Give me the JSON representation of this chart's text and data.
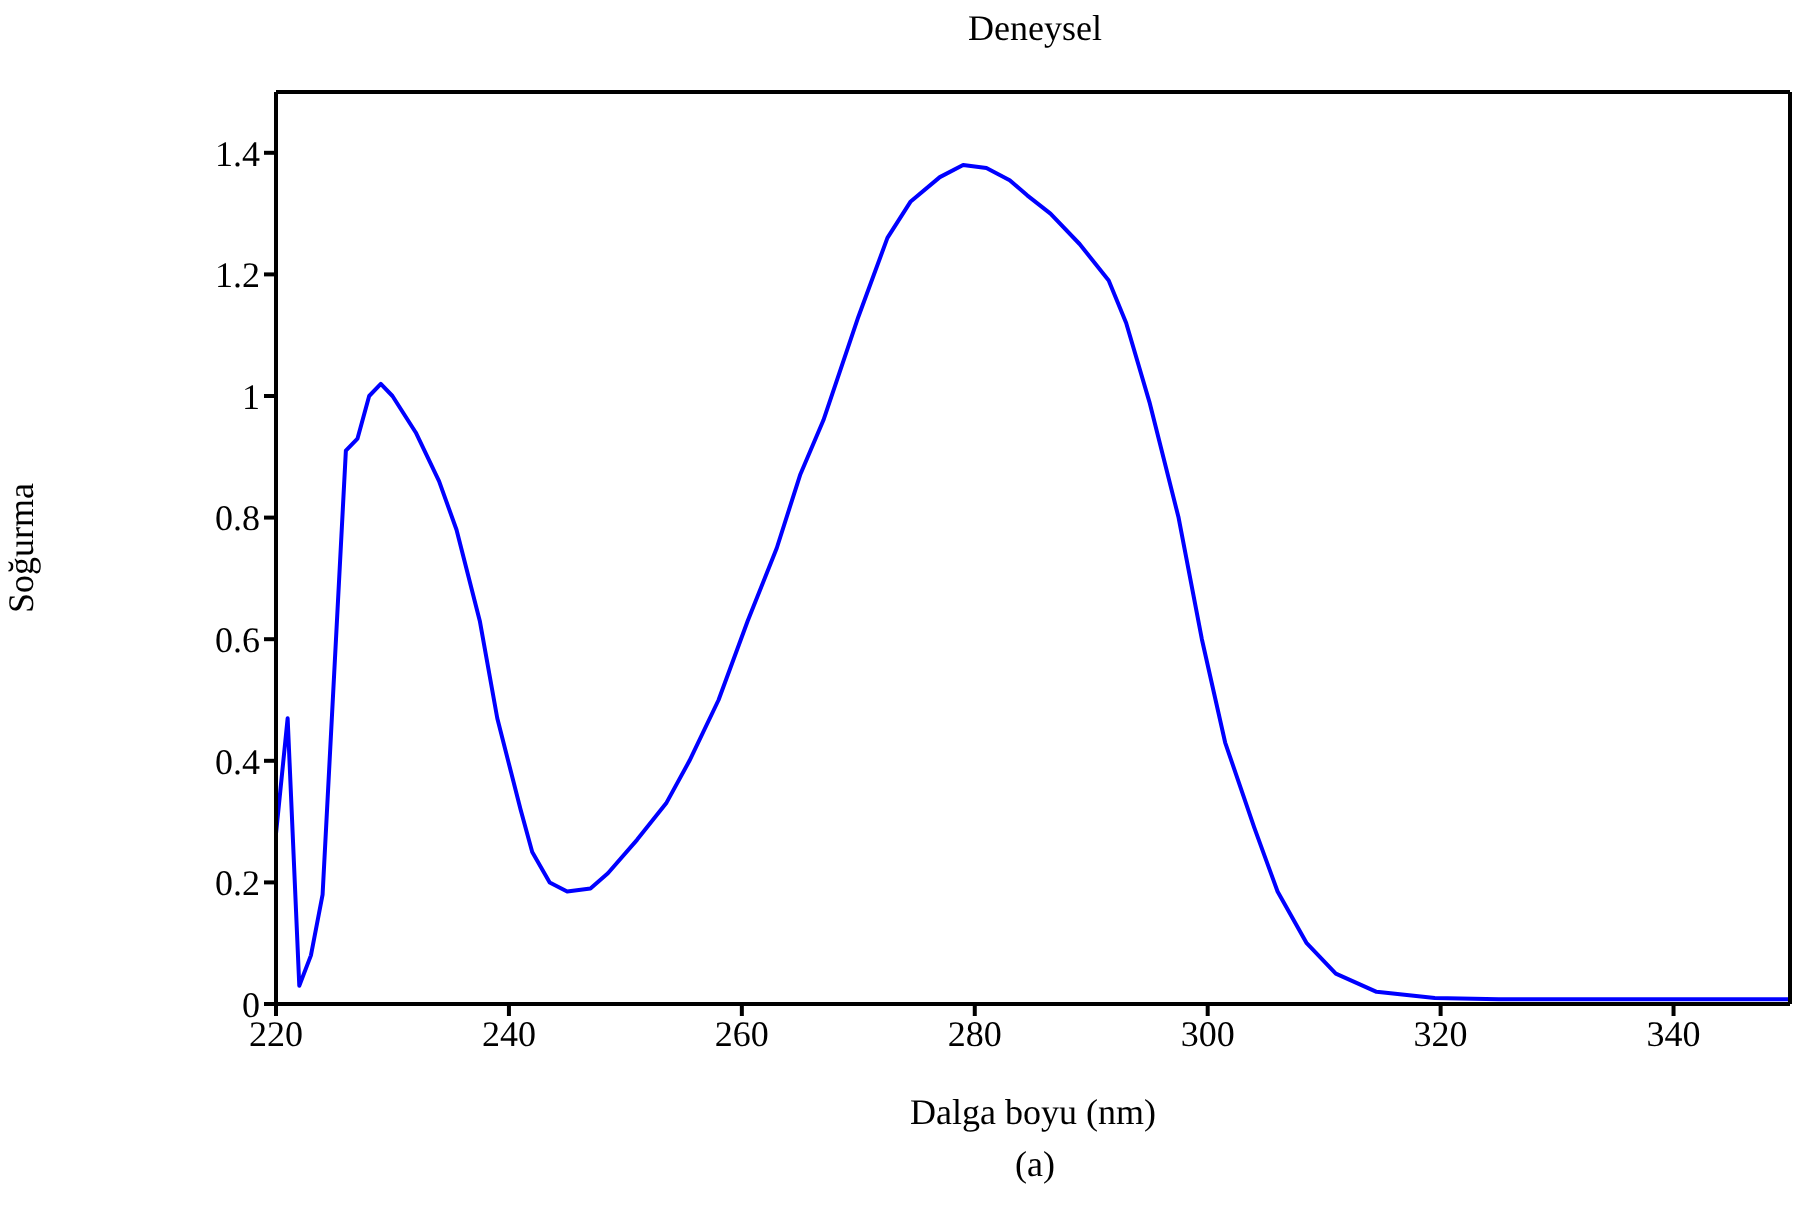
{
  "chart_data": {
    "type": "line",
    "title": "Deneysel",
    "xlabel": "Dalga boyu (nm)",
    "ylabel": "Soğurma",
    "annotations": [
      "(a)"
    ],
    "x": [
      220,
      221,
      222,
      223,
      224,
      226,
      227,
      228,
      229,
      230,
      232,
      234,
      235.5,
      237.5,
      239,
      241,
      242,
      243.5,
      245,
      247,
      248.5,
      251,
      253.5,
      255.5,
      258,
      260.5,
      263,
      265,
      267,
      270,
      272.5,
      274.5,
      277,
      279,
      281,
      283,
      284.5,
      286.5,
      289,
      291.5,
      293,
      295,
      297.5,
      299.5,
      301.5,
      304,
      306,
      308.5,
      311,
      314.5,
      319.5,
      325,
      330,
      335,
      340,
      345,
      350
    ],
    "series": [
      {
        "color": "#0000ff",
        "values": [
          0.28,
          0.47,
          0.03,
          0.08,
          0.18,
          0.91,
          0.93,
          1.0,
          1.02,
          1.0,
          0.94,
          0.86,
          0.78,
          0.63,
          0.47,
          0.32,
          0.25,
          0.2,
          0.185,
          0.19,
          0.215,
          0.27,
          0.33,
          0.4,
          0.5,
          0.63,
          0.75,
          0.87,
          0.96,
          1.13,
          1.26,
          1.32,
          1.36,
          1.38,
          1.375,
          1.355,
          1.33,
          1.3,
          1.25,
          1.19,
          1.12,
          0.99,
          0.8,
          0.6,
          0.43,
          0.29,
          0.185,
          0.1,
          0.05,
          0.02,
          0.01,
          0.008,
          0.008,
          0.008,
          0.008,
          0.008,
          0.008
        ]
      }
    ],
    "xlim": [
      220,
      350
    ],
    "xticks": [
      220,
      240,
      260,
      280,
      300,
      320,
      340
    ],
    "ylim": [
      0,
      1.5
    ],
    "yticks": [
      0,
      0.2,
      0.4,
      0.6,
      0.8,
      {
        "value": 1,
        "label": "1"
      },
      1.2,
      1.4
    ],
    "grid": false,
    "legend": false,
    "marker": "none",
    "line_style": "solid"
  }
}
